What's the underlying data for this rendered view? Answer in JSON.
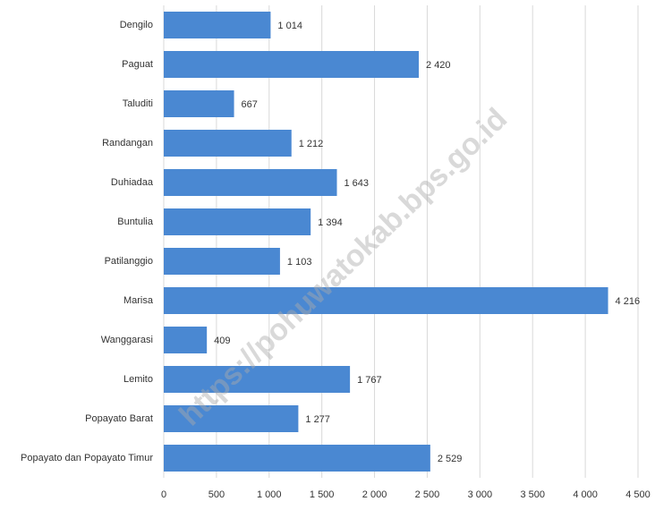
{
  "chart_data": {
    "type": "bar",
    "orientation": "horizontal",
    "categories": [
      "Dengilo",
      "Paguat",
      "Taluditi",
      "Randangan",
      "Duhiadaa",
      "Buntulia",
      "Patilanggio",
      "Marisa",
      "Wanggarasi",
      "Lemito",
      "Popayato Barat",
      "Popayato dan Popayato Timur"
    ],
    "values": [
      1014,
      2420,
      667,
      1212,
      1643,
      1394,
      1103,
      4216,
      409,
      1767,
      1277,
      2529
    ],
    "value_labels": [
      "1 014",
      "2 420",
      "667",
      "1 212",
      "1 643",
      "1 394",
      "1 103",
      "4 216",
      "409",
      "1 767",
      "1 277",
      "2 529"
    ],
    "color": "#4a88d2",
    "xlim": [
      0,
      4500
    ],
    "xticks": [
      0,
      500,
      {
        "value": 1000,
        "label": "1 000"
      },
      {
        "value": 1500,
        "label": "1 500"
      },
      {
        "value": 2000,
        "label": "2 000"
      },
      {
        "value": 2500,
        "label": "2 500"
      },
      {
        "value": 3000,
        "label": "3 000"
      },
      {
        "value": 3500,
        "label": "3 500"
      },
      {
        "value": 4000,
        "label": "4 000"
      },
      {
        "value": 4500,
        "label": "4 500"
      }
    ],
    "grid": true,
    "watermark": "https://pohuwatokab.bps.go.id"
  }
}
